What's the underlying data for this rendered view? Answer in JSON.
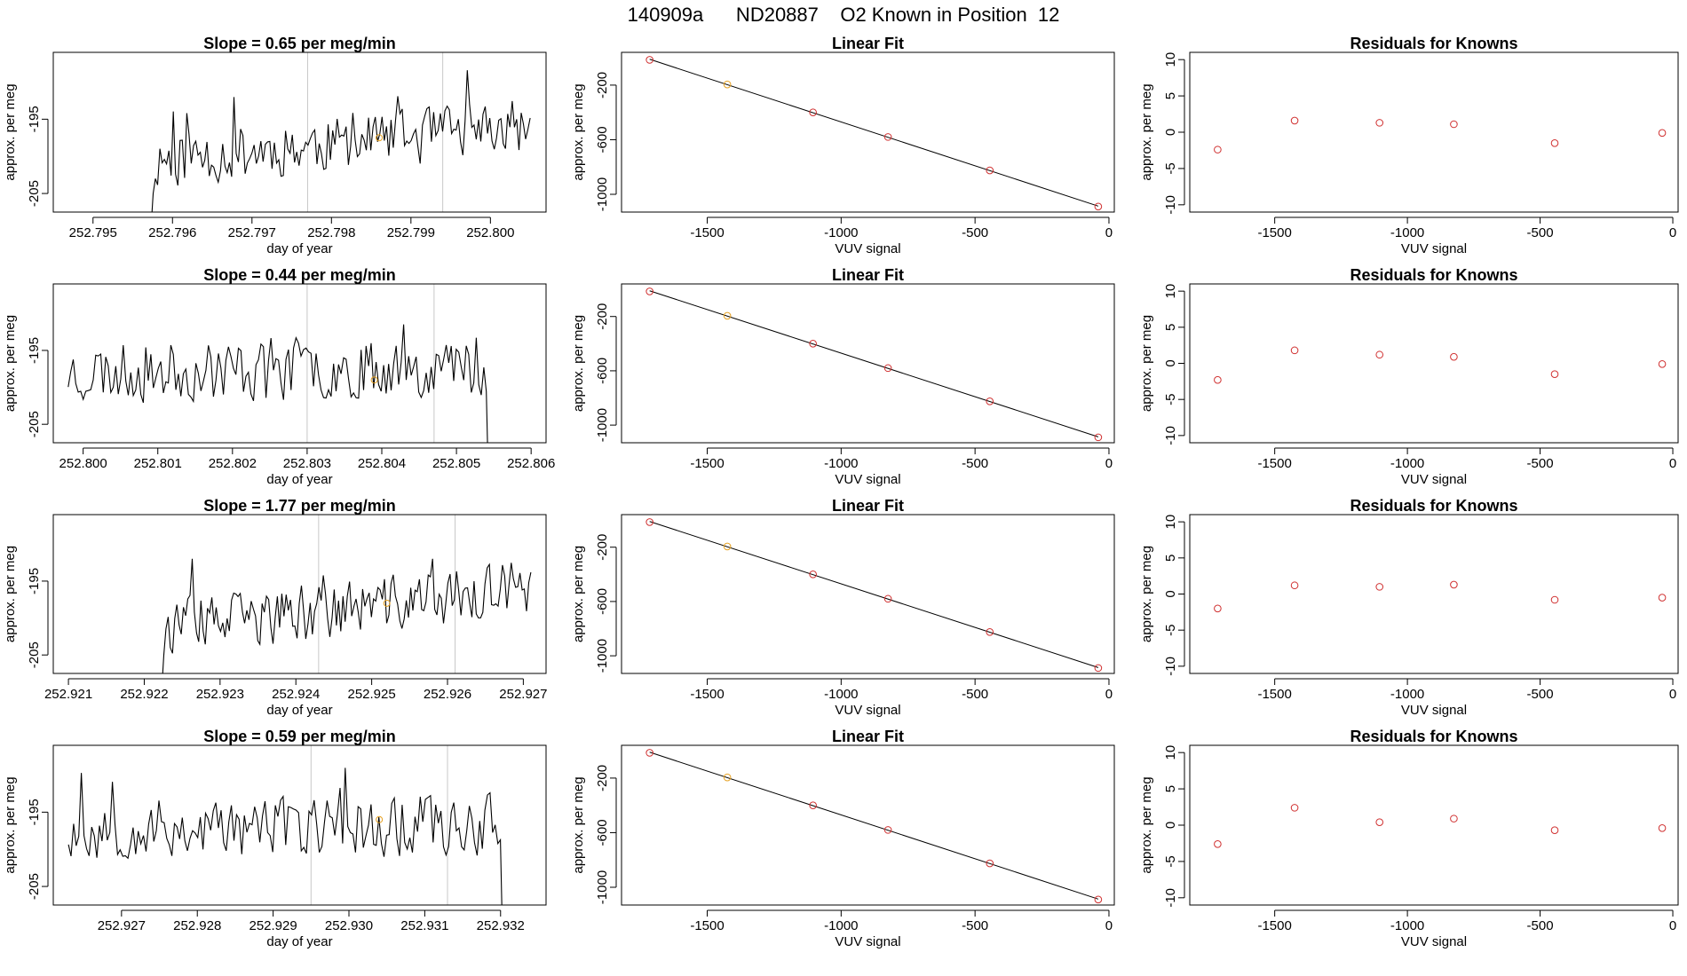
{
  "figure": {
    "title": "140909a      ND20887    O2 Known in Position  12"
  },
  "colors": {
    "trace": "#000000",
    "known_marker": "#e6a020",
    "fit_point": "#d03030",
    "vline": "#c8c8c8",
    "fit_line": "#000000"
  },
  "chart_data": [
    {
      "type": "line",
      "row": 1,
      "title": "Slope =  0.65  per meg/min",
      "xlabel": "day of year",
      "ylabel": "approx. per meg",
      "xlim": [
        252.7945,
        252.8007
      ],
      "ylim": [
        -207.5,
        -186.0
      ],
      "xticks": [
        "252.795",
        "252.796",
        "252.797",
        "252.798",
        "252.799",
        "252.800"
      ],
      "yticks": [
        "-195",
        "-205"
      ],
      "vlines": [
        252.7977,
        252.7994
      ],
      "known_marker": {
        "x": 252.7986,
        "y": -197.5
      },
      "trace": {
        "start": 252.7957,
        "end": 252.8005,
        "seed": 11,
        "mean_start": -200.5,
        "mean_end": -196,
        "amp": 2.2,
        "drop_start": true,
        "drop_end": false
      }
    },
    {
      "type": "scatter_fit",
      "row": 1,
      "title": "Linear Fit",
      "xlabel": "VUV signal",
      "ylabel": "approx. per meg",
      "xlim": [
        -1820,
        20
      ],
      "ylim": [
        -1130,
        40
      ],
      "xticks": [
        "-1500",
        "-1000",
        "-500",
        "0"
      ],
      "yticks": [
        "-200",
        "-600",
        "-1000"
      ],
      "x": [
        -1715,
        -1425,
        -1105,
        -825,
        -445,
        -40
      ],
      "y": [
        -15,
        -195,
        -400,
        -580,
        -825,
        -1090
      ],
      "known_index": 1
    },
    {
      "type": "scatter",
      "row": 1,
      "title": "Residuals for Knowns",
      "xlabel": "VUV signal",
      "ylabel": "approx. per meg",
      "xlim": [
        -1820,
        20
      ],
      "ylim": [
        -11,
        11
      ],
      "xticks": [
        "-1500",
        "-1000",
        "-500",
        "0"
      ],
      "yticks": [
        "10",
        "5",
        "0",
        "-5",
        "-10"
      ],
      "x": [
        -1715,
        -1425,
        -1105,
        -825,
        -445,
        -40
      ],
      "y": [
        -2.4,
        1.6,
        1.3,
        1.1,
        -1.5,
        -0.1
      ]
    },
    {
      "type": "line",
      "row": 2,
      "title": "Slope =  0.44  per meg/min",
      "xlabel": "day of year",
      "ylabel": "approx. per meg",
      "xlim": [
        252.7996,
        252.8062
      ],
      "ylim": [
        -207.5,
        -186.0
      ],
      "xticks": [
        "252.800",
        "252.801",
        "252.802",
        "252.803",
        "252.804",
        "252.805",
        "252.806"
      ],
      "yticks": [
        "-195",
        "-205"
      ],
      "vlines": [
        252.803,
        252.8047
      ],
      "known_marker": {
        "x": 252.8039,
        "y": -199
      },
      "trace": {
        "start": 252.7998,
        "end": 252.8055,
        "seed": 23,
        "mean_start": -198,
        "mean_end": -197,
        "amp": 2.4,
        "drop_start": false,
        "drop_end": true
      }
    },
    {
      "type": "scatter_fit",
      "row": 2,
      "title": "Linear Fit",
      "xlabel": "VUV signal",
      "ylabel": "approx. per meg",
      "xlim": [
        -1820,
        20
      ],
      "ylim": [
        -1130,
        40
      ],
      "xticks": [
        "-1500",
        "-1000",
        "-500",
        "0"
      ],
      "yticks": [
        "-200",
        "-600",
        "-1000"
      ],
      "x": [
        -1715,
        -1425,
        -1105,
        -825,
        -445,
        -40
      ],
      "y": [
        -15,
        -195,
        -400,
        -580,
        -825,
        -1090
      ],
      "known_index": 1
    },
    {
      "type": "scatter",
      "row": 2,
      "title": "Residuals for Knowns",
      "xlabel": "VUV signal",
      "ylabel": "approx. per meg",
      "xlim": [
        -1820,
        20
      ],
      "ylim": [
        -11,
        11
      ],
      "xticks": [
        "-1500",
        "-1000",
        "-500",
        "0"
      ],
      "yticks": [
        "10",
        "5",
        "0",
        "-5",
        "-10"
      ],
      "x": [
        -1715,
        -1425,
        -1105,
        -825,
        -445,
        -40
      ],
      "y": [
        -2.3,
        1.8,
        1.2,
        0.9,
        -1.5,
        -0.1
      ]
    },
    {
      "type": "line",
      "row": 3,
      "title": "Slope =  1.77  per meg/min",
      "xlabel": "day of year",
      "ylabel": "approx. per meg",
      "xlim": [
        252.9208,
        252.9273
      ],
      "ylim": [
        -207.5,
        -186.0
      ],
      "xticks": [
        "252.921",
        "252.922",
        "252.923",
        "252.924",
        "252.925",
        "252.926",
        "252.927"
      ],
      "yticks": [
        "-195",
        "-205"
      ],
      "vlines": [
        252.9243,
        252.9261
      ],
      "known_marker": {
        "x": 252.9252,
        "y": -198
      },
      "trace": {
        "start": 252.9222,
        "end": 252.9271,
        "seed": 37,
        "mean_start": -201.5,
        "mean_end": -196,
        "amp": 2.2,
        "drop_start": true,
        "drop_end": false
      }
    },
    {
      "type": "scatter_fit",
      "row": 3,
      "title": "Linear Fit",
      "xlabel": "VUV signal",
      "ylabel": "approx. per meg",
      "xlim": [
        -1820,
        20
      ],
      "ylim": [
        -1130,
        40
      ],
      "xticks": [
        "-1500",
        "-1000",
        "-500",
        "0"
      ],
      "yticks": [
        "-200",
        "-600",
        "-1000"
      ],
      "x": [
        -1715,
        -1425,
        -1105,
        -825,
        -445,
        -40
      ],
      "y": [
        -15,
        -195,
        -400,
        -580,
        -825,
        -1090
      ],
      "known_index": 1
    },
    {
      "type": "scatter",
      "row": 3,
      "title": "Residuals for Knowns",
      "xlabel": "VUV signal",
      "ylabel": "approx. per meg",
      "xlim": [
        -1820,
        20
      ],
      "ylim": [
        -11,
        11
      ],
      "xticks": [
        "-1500",
        "-1000",
        "-500",
        "0"
      ],
      "yticks": [
        "10",
        "5",
        "0",
        "-5",
        "-10"
      ],
      "x": [
        -1715,
        -1425,
        -1105,
        -825,
        -445,
        -40
      ],
      "y": [
        -2.0,
        1.2,
        1.0,
        1.3,
        -0.8,
        -0.5
      ]
    },
    {
      "type": "line",
      "row": 4,
      "title": "Slope =  0.59  per meg/min",
      "xlabel": "day of year",
      "ylabel": "approx. per meg",
      "xlim": [
        252.9261,
        252.9326
      ],
      "ylim": [
        -207.5,
        -186.0
      ],
      "xticks": [
        "252.927",
        "252.928",
        "252.929",
        "252.930",
        "252.931",
        "252.932"
      ],
      "yticks": [
        "-195",
        "-205"
      ],
      "vlines": [
        252.9295,
        252.9313
      ],
      "known_marker": {
        "x": 252.9304,
        "y": -196
      },
      "trace": {
        "start": 252.9263,
        "end": 252.9321,
        "seed": 53,
        "mean_start": -197.5,
        "mean_end": -196.5,
        "amp": 2.4,
        "drop_start": false,
        "drop_end": true
      }
    },
    {
      "type": "scatter_fit",
      "row": 4,
      "title": "Linear Fit",
      "xlabel": "VUV signal",
      "ylabel": "approx. per meg",
      "xlim": [
        -1820,
        20
      ],
      "ylim": [
        -1130,
        40
      ],
      "xticks": [
        "-1500",
        "-1000",
        "-500",
        "0"
      ],
      "yticks": [
        "-200",
        "-600",
        "-1000"
      ],
      "x": [
        -1715,
        -1425,
        -1105,
        -825,
        -445,
        -40
      ],
      "y": [
        -15,
        -195,
        -400,
        -580,
        -825,
        -1090
      ],
      "known_index": 1
    },
    {
      "type": "scatter",
      "row": 4,
      "title": "Residuals for Knowns",
      "xlabel": "VUV signal",
      "ylabel": "approx. per meg",
      "xlim": [
        -1820,
        20
      ],
      "ylim": [
        -11,
        11
      ],
      "xticks": [
        "-1500",
        "-1000",
        "-500",
        "0"
      ],
      "yticks": [
        "10",
        "5",
        "0",
        "-5",
        "-10"
      ],
      "x": [
        -1715,
        -1425,
        -1105,
        -825,
        -445,
        -40
      ],
      "y": [
        -2.6,
        2.4,
        0.4,
        0.9,
        -0.7,
        -0.4
      ]
    }
  ]
}
